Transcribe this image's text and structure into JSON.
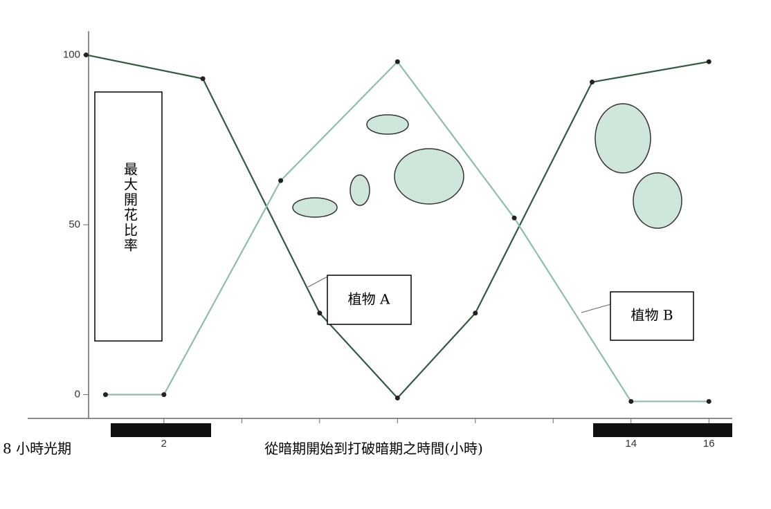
{
  "chart_data": {
    "type": "line",
    "y_label": "最大開花比率",
    "x_label": "從暗期開始到打破暗期之時間(小時)",
    "light_period_label": "8 小時光期",
    "annotations": [
      "植物 A",
      "植物 B"
    ],
    "xlim": [
      -1.5,
      16.6
    ],
    "ylim": [
      -7,
      107
    ],
    "xticks": [
      2,
      14,
      16
    ],
    "x_minor_ticks": [
      4,
      6,
      8,
      10,
      12
    ],
    "yticks": [
      0,
      50,
      100
    ],
    "series": [
      {
        "name": "植物 A",
        "color": "#2f5a3f",
        "x": [
          0,
          3,
          6,
          8,
          10,
          13,
          16
        ],
        "values": [
          100,
          93,
          24,
          -1,
          24,
          92,
          98
        ]
      },
      {
        "name": "植物 B",
        "color": "#8dbfa6",
        "x": [
          0.5,
          2,
          5,
          8,
          11,
          14,
          16
        ],
        "values": [
          0,
          0,
          63,
          98,
          52,
          -2,
          -2
        ]
      }
    ]
  }
}
